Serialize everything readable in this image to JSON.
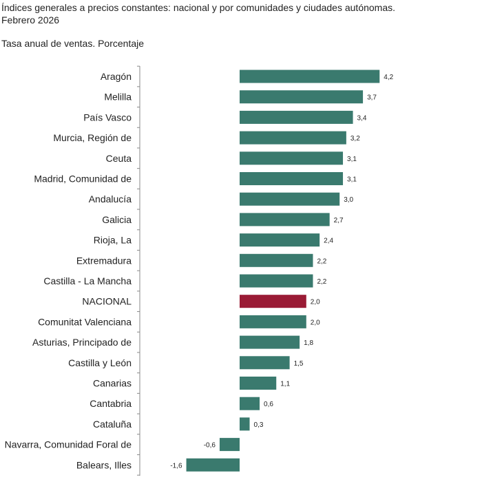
{
  "title_line1": "Índices generales a precios constantes: nacional y por comunidades y ciudades autónomas.",
  "title_line2": "Febrero 2026",
  "subtitle": "Tasa anual de ventas. Porcentaje",
  "colors": {
    "bar": "#3a7a6e",
    "highlight": "#9a1b35",
    "axis": "#888888"
  },
  "chart_data": {
    "type": "bar",
    "orientation": "horizontal",
    "title": "Índices generales a precios constantes: nacional y por comunidades y ciudades autónomas. Febrero 2026",
    "subtitle": "Tasa anual de ventas. Porcentaje",
    "categories": [
      "Aragón",
      "Melilla",
      "País Vasco",
      "Murcia, Región de",
      "Ceuta",
      "Madrid, Comunidad de",
      "Andalucía",
      "Galicia",
      "Rioja, La",
      "Extremadura",
      "Castilla - La Mancha",
      "NACIONAL",
      "Comunitat Valenciana",
      "Asturias, Principado de",
      "Castilla y León",
      "Canarias",
      "Cantabria",
      "Cataluña",
      "Navarra, Comunidad Foral de",
      "Balears, Illes"
    ],
    "values": [
      4.2,
      3.7,
      3.4,
      3.2,
      3.1,
      3.1,
      3.0,
      2.7,
      2.4,
      2.2,
      2.2,
      2.0,
      2.0,
      1.8,
      1.5,
      1.1,
      0.6,
      0.3,
      -0.6,
      -1.6
    ],
    "value_labels": [
      "4,2",
      "3,7",
      "3,4",
      "3,2",
      "3,1",
      "3,1",
      "3,0",
      "2,7",
      "2,4",
      "2,2",
      "2,2",
      "2,0",
      "2,0",
      "1,8",
      "1,5",
      "1,1",
      "0,6",
      "0,3",
      "-0,6",
      "-1,6"
    ],
    "highlight": "NACIONAL",
    "xlim": [
      -1.6,
      4.2
    ],
    "grid": false,
    "legend": false
  }
}
